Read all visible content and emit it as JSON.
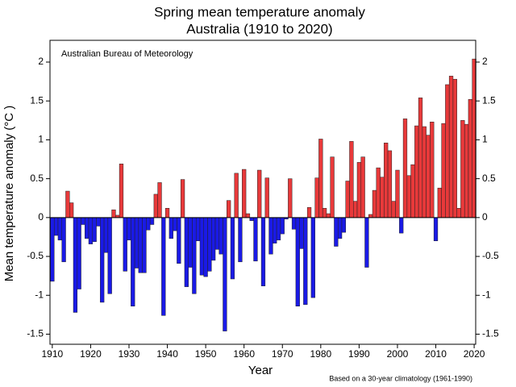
{
  "chart_data": {
    "type": "bar",
    "title": "Spring mean temperature anomaly",
    "subtitle": "Australia (1910 to 2020)",
    "annotation": "Australian Bureau of Meteorology",
    "footnote": "Based on a 30-year climatology (1961-1990)",
    "xlabel": "Year",
    "ylabel": "Mean temperature anomaly (°C )",
    "x": [
      1910,
      1911,
      1912,
      1913,
      1914,
      1915,
      1916,
      1917,
      1918,
      1919,
      1920,
      1921,
      1922,
      1923,
      1924,
      1925,
      1926,
      1927,
      1928,
      1929,
      1930,
      1931,
      1932,
      1933,
      1934,
      1935,
      1936,
      1937,
      1938,
      1939,
      1940,
      1941,
      1942,
      1943,
      1944,
      1945,
      1946,
      1947,
      1948,
      1949,
      1950,
      1951,
      1952,
      1953,
      1954,
      1955,
      1956,
      1957,
      1958,
      1959,
      1960,
      1961,
      1962,
      1963,
      1964,
      1965,
      1966,
      1967,
      1968,
      1969,
      1970,
      1971,
      1972,
      1973,
      1974,
      1975,
      1976,
      1977,
      1978,
      1979,
      1980,
      1981,
      1982,
      1983,
      1984,
      1985,
      1986,
      1987,
      1988,
      1989,
      1990,
      1991,
      1992,
      1993,
      1994,
      1995,
      1996,
      1997,
      1998,
      1999,
      2000,
      2001,
      2002,
      2003,
      2004,
      2005,
      2006,
      2007,
      2008,
      2009,
      2010,
      2011,
      2012,
      2013,
      2014,
      2015,
      2016,
      2017,
      2018,
      2019,
      2020
    ],
    "values": [
      -0.82,
      -0.23,
      -0.29,
      -0.57,
      0.34,
      0.19,
      -1.22,
      -0.92,
      -0.09,
      -0.27,
      -0.34,
      -0.31,
      -0.11,
      -1.09,
      -0.45,
      -0.98,
      0.1,
      0.03,
      0.69,
      -0.69,
      -0.29,
      -1.14,
      -0.65,
      -0.71,
      -0.71,
      -0.16,
      -0.09,
      0.3,
      0.45,
      -1.26,
      0.12,
      -0.27,
      -0.17,
      -0.59,
      0.49,
      -0.89,
      -0.64,
      -0.98,
      -0.3,
      -0.74,
      -0.76,
      -0.69,
      -0.55,
      -0.41,
      -0.47,
      -1.46,
      0.22,
      -0.79,
      0.57,
      -0.57,
      0.62,
      0.05,
      -0.04,
      -0.56,
      0.61,
      -0.88,
      0.51,
      -0.47,
      -0.33,
      -0.29,
      -0.21,
      -0.02,
      0.5,
      -0.15,
      -1.14,
      -0.4,
      -1.12,
      0.13,
      -1.03,
      0.51,
      1.01,
      0.12,
      0.05,
      0.78,
      -0.37,
      -0.27,
      -0.19,
      0.47,
      0.98,
      0.21,
      0.71,
      0.78,
      -0.64,
      0.04,
      0.35,
      0.64,
      0.52,
      0.96,
      0.86,
      0.21,
      0.61,
      -0.2,
      1.27,
      0.54,
      0.68,
      1.18,
      1.54,
      1.17,
      1.06,
      1.23,
      -0.3,
      0.38,
      1.21,
      1.71,
      1.82,
      1.78,
      0.12,
      1.25,
      1.2,
      1.52,
      2.04
    ],
    "positive_color": "#e8393a",
    "negative_color": "#1a1ae6",
    "xlim": [
      1909.4,
      2020.4
    ],
    "xticks": [
      1910,
      1920,
      1930,
      1940,
      1950,
      1960,
      1970,
      1980,
      1990,
      2000,
      2010,
      2020
    ],
    "ylim": [
      -1.63,
      2.28
    ],
    "yticks": [
      -1.5,
      -1,
      -0.5,
      0,
      0.5,
      1,
      1.5,
      2
    ],
    "right_axis": true
  }
}
